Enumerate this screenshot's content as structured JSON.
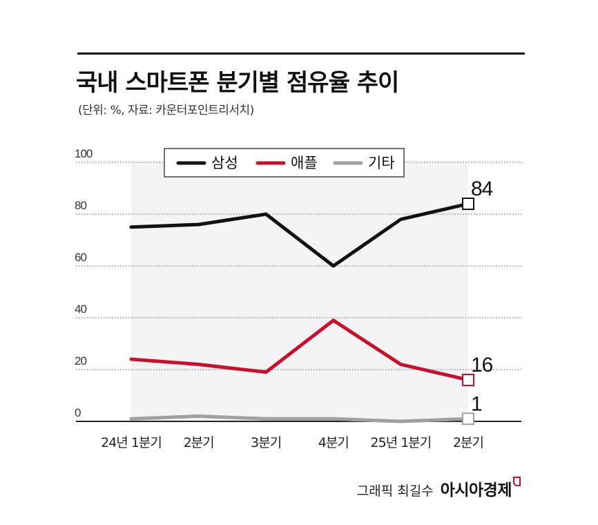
{
  "header": {
    "title": "국내 스마트폰 분기별 점유율 추이",
    "subtitle": "(단위: %, 자료: 카운터포인트리서치)"
  },
  "credit": {
    "label": "그래픽 최길수",
    "brand": "아시아경제"
  },
  "chart_data": {
    "type": "line",
    "categories": [
      "24년 1분기",
      "2분기",
      "3분기",
      "4분기",
      "25년 1분기",
      "2분기"
    ],
    "ylim": [
      0,
      100
    ],
    "yticks": [
      0,
      20,
      40,
      60,
      80,
      100
    ],
    "grid": true,
    "legend_position": "top",
    "series": [
      {
        "name": "삼성",
        "color": "#111111",
        "values": [
          75,
          76,
          80,
          60,
          78,
          84
        ],
        "end_label": "84"
      },
      {
        "name": "애플",
        "color": "#c8102e",
        "values": [
          24,
          22,
          19,
          39,
          22,
          16
        ],
        "end_label": "16"
      },
      {
        "name": "기타",
        "color": "#a0a0a0",
        "values": [
          1,
          2,
          1,
          1,
          0,
          1
        ],
        "end_label": "1"
      }
    ]
  }
}
